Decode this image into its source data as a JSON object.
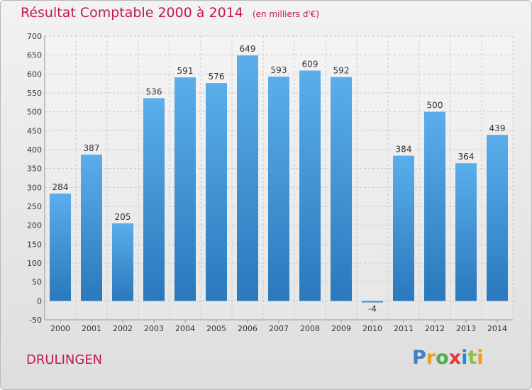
{
  "header": {
    "title": "Résultat Comptable 2000 à 2014",
    "subtitle": "(en milliers d'€)"
  },
  "footer": {
    "town": "DRULINGEN",
    "logo_letters": [
      "P",
      "r",
      "o",
      "x",
      "i",
      "t",
      "i"
    ],
    "logo_colors": [
      "#3f7fc6",
      "#e8a21a",
      "#4caf50",
      "#e53935",
      "#1e88e5",
      "#8bc34a",
      "#f39c12"
    ]
  },
  "chart_data": {
    "type": "bar",
    "title": "Résultat Comptable 2000 à 2014",
    "subtitle": "(en milliers d'€)",
    "categories": [
      "2000",
      "2001",
      "2002",
      "2003",
      "2004",
      "2005",
      "2006",
      "2007",
      "2008",
      "2009",
      "2010",
      "2011",
      "2012",
      "2013",
      "2014"
    ],
    "values": [
      284,
      387,
      205,
      536,
      591,
      576,
      649,
      593,
      609,
      592,
      -4,
      384,
      500,
      364,
      439
    ],
    "value_labels": [
      "284",
      "387",
      "205",
      "536",
      "591",
      "576",
      "649",
      "593",
      "609",
      "592",
      "-4",
      "384",
      "500",
      "364",
      "439"
    ],
    "ylim": [
      -50,
      700
    ],
    "yticks": [
      -50,
      0,
      50,
      100,
      150,
      200,
      250,
      300,
      350,
      400,
      450,
      500,
      550,
      600,
      650,
      700
    ],
    "ytick_labels": [
      "-50",
      "0",
      "50",
      "100",
      "150",
      "200",
      "250",
      "300",
      "350",
      "400",
      "450",
      "500",
      "550",
      "600",
      "650",
      "700"
    ],
    "grid": true,
    "legend": "none",
    "bar_color": "#4a9ee0"
  }
}
